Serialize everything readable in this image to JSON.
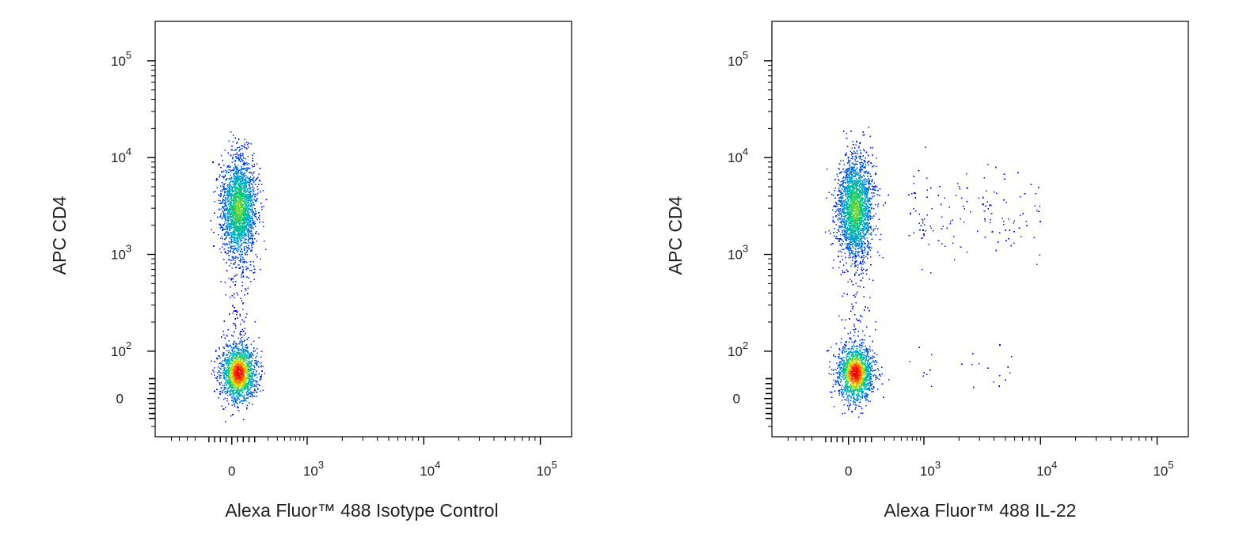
{
  "chart_data": [
    {
      "type": "scatter",
      "xlabel": "Alexa Fluor™ 488 Isotype Control",
      "ylabel": "APC CD4",
      "scale": "biexponential",
      "x_ticks": [
        {
          "value": 0,
          "label": "0"
        },
        {
          "value": 1000,
          "label": "10",
          "exp": "3"
        },
        {
          "value": 10000,
          "label": "10",
          "exp": "4"
        },
        {
          "value": 100000,
          "label": "10",
          "exp": "5"
        }
      ],
      "y_ticks": [
        {
          "value": 0,
          "label": "0"
        },
        {
          "value": 100,
          "label": "10",
          "exp": "2"
        },
        {
          "value": 1000,
          "label": "10",
          "exp": "3"
        },
        {
          "value": 10000,
          "label": "10",
          "exp": "4"
        },
        {
          "value": 100000,
          "label": "10",
          "exp": "5"
        }
      ],
      "populations": [
        {
          "name": "CD4+",
          "x_center": 0,
          "y_center": 3000,
          "events": 2200
        },
        {
          "name": "CD4-",
          "x_center": 0,
          "y_center": 55,
          "events": 1500
        }
      ]
    },
    {
      "type": "scatter",
      "xlabel": "Alexa Fluor™ 488 IL-22",
      "ylabel": "APC CD4",
      "scale": "biexponential",
      "x_ticks": [
        {
          "value": 0,
          "label": "0"
        },
        {
          "value": 1000,
          "label": "10",
          "exp": "3"
        },
        {
          "value": 10000,
          "label": "10",
          "exp": "4"
        },
        {
          "value": 100000,
          "label": "10",
          "exp": "5"
        }
      ],
      "y_ticks": [
        {
          "value": 0,
          "label": "0"
        },
        {
          "value": 100,
          "label": "10",
          "exp": "2"
        },
        {
          "value": 1000,
          "label": "10",
          "exp": "3"
        },
        {
          "value": 10000,
          "label": "10",
          "exp": "4"
        },
        {
          "value": 100000,
          "label": "10",
          "exp": "5"
        }
      ],
      "populations": [
        {
          "name": "CD4+",
          "x_center": 0,
          "y_center": 3000,
          "events": 2200
        },
        {
          "name": "CD4-",
          "x_center": 0,
          "y_center": 55,
          "events": 1500
        },
        {
          "name": "CD4+ IL-22+",
          "x_range": [
            600,
            10000
          ],
          "y_center": 2500,
          "events": 140
        },
        {
          "name": "CD4- IL-22+",
          "x_range": [
            600,
            6000
          ],
          "y_center": 60,
          "events": 22
        }
      ]
    }
  ],
  "colors": {
    "density_low": "#0000ff",
    "density_mid": "#00c8a0",
    "density_high": "#ff0000",
    "axis": "#000000"
  }
}
